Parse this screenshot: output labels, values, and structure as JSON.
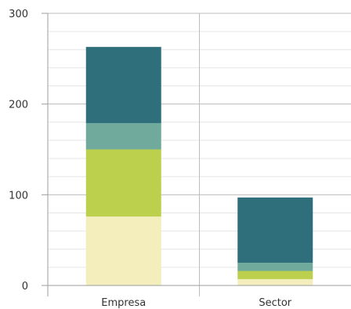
{
  "chart_data": {
    "type": "bar",
    "stacked": true,
    "categories": [
      "Empresa",
      "Sector"
    ],
    "series": [
      {
        "values": [
          76,
          7
        ],
        "color": "#f4eebd"
      },
      {
        "values": [
          74,
          9
        ],
        "color": "#bcd04d"
      },
      {
        "values": [
          29,
          9
        ],
        "color": "#70aa9c"
      },
      {
        "values": [
          84,
          72
        ],
        "color": "#2e6f7b"
      }
    ],
    "ylim": [
      0,
      300
    ],
    "y_ticks": [
      0,
      100,
      200,
      300
    ],
    "y_tick_labels": [
      "0",
      "100",
      "200",
      "300"
    ],
    "grid": true,
    "legend": "none"
  }
}
